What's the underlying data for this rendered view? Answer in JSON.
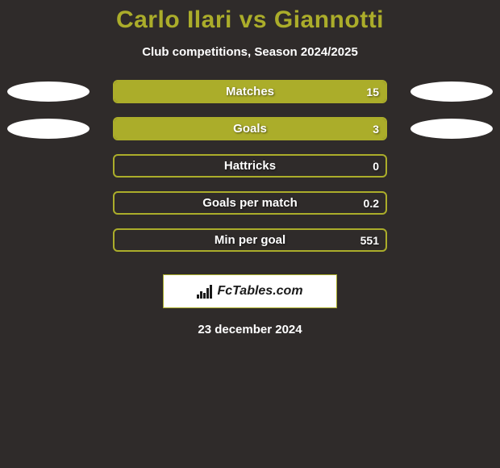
{
  "background_color": "#2f2b2a",
  "title": {
    "text": "Carlo Ilari vs Giannotti",
    "color": "#abad2a",
    "fontsize": 30
  },
  "subtitle": {
    "text": "Club competitions, Season 2024/2025",
    "color": "#ffffff",
    "fontsize": 15
  },
  "bars": {
    "track_border_color": "#abad2a",
    "fill_color": "#abad2a",
    "label_color": "#ffffff",
    "label_fontsize": 15,
    "value_fontsize": 14,
    "rows": [
      {
        "label": "Matches",
        "value": "15",
        "fill_pct": 100,
        "left_oval": true,
        "right_oval": true,
        "left_oval_color": "#ffffff",
        "right_oval_color": "#ffffff"
      },
      {
        "label": "Goals",
        "value": "3",
        "fill_pct": 100,
        "left_oval": true,
        "right_oval": true,
        "left_oval_color": "#ffffff",
        "right_oval_color": "#ffffff"
      },
      {
        "label": "Hattricks",
        "value": "0",
        "fill_pct": 0,
        "left_oval": false,
        "right_oval": false
      },
      {
        "label": "Goals per match",
        "value": "0.2",
        "fill_pct": 0,
        "left_oval": false,
        "right_oval": false
      },
      {
        "label": "Min per goal",
        "value": "551",
        "fill_pct": 0,
        "left_oval": false,
        "right_oval": false
      }
    ]
  },
  "brand": {
    "text": "FcTables.com",
    "background_color": "#ffffff",
    "border_color": "#abad2a",
    "text_color": "#1a1a1a",
    "icon_color": "#1a1a1a"
  },
  "date": {
    "text": "23 december 2024",
    "color": "#ffffff",
    "fontsize": 15
  }
}
